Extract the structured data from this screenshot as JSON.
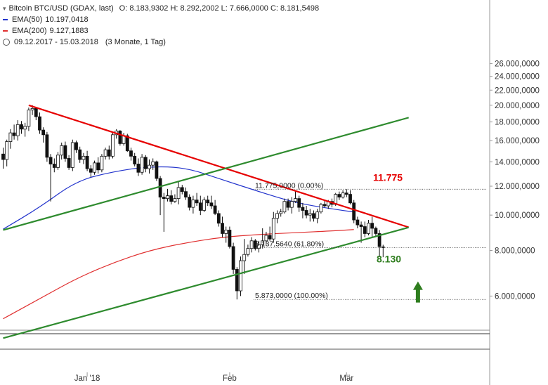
{
  "legend": {
    "instrument": "Bitcoin BTC/USD (GDAX, last)",
    "ohlc": "O: 8.183,9302  H: 8.292,2002  L: 7.666,0000  C: 8.181,5498",
    "ema50_label": "EMA(50)",
    "ema50_value": "10.197,0418",
    "ema200_label": "EMA(200)",
    "ema200_value": "9.127,1883",
    "range": "09.12.2017 - 15.03.2018",
    "period": "(3 Monate, 1 Tag)"
  },
  "colors": {
    "ema50": "#2233cc",
    "ema200": "#e03030",
    "candle_up": "#ffffff",
    "candle_down": "#111111",
    "downtrend": "#e60000",
    "channel": "#2e8b2e",
    "annotation_red": "#e60000",
    "annotation_green": "#2e7d1e"
  },
  "chart_data": {
    "type": "candlestick",
    "y_ticks": [
      "26.000,0000",
      "24.000,0000",
      "22.000,0000",
      "20.000,0000",
      "18.000,0000",
      "16.000,0000",
      "14.000,0000",
      "12.000,0000",
      "10.000,0000",
      "8.000,0000",
      "6.000,0000"
    ],
    "x_ticks": [
      "Jan '18",
      "Feb",
      "Mär"
    ],
    "fib_levels": [
      {
        "label": "11.775,0000 (0.00%)"
      },
      {
        "label": "8.137,5640 (61.80%)"
      },
      {
        "label": "5.873,0000 (100.00%)"
      }
    ],
    "annotations": {
      "resistance": "11.775",
      "support": "8.130"
    },
    "candles": [
      {
        "o": 14700,
        "h": 15300,
        "l": 13400,
        "c": 14200
      },
      {
        "o": 14200,
        "h": 16100,
        "l": 13600,
        "c": 15900
      },
      {
        "o": 15900,
        "h": 17200,
        "l": 15200,
        "c": 16800
      },
      {
        "o": 16800,
        "h": 17700,
        "l": 16100,
        "c": 16500
      },
      {
        "o": 16500,
        "h": 18200,
        "l": 16000,
        "c": 17700
      },
      {
        "o": 17700,
        "h": 18100,
        "l": 16700,
        "c": 17200
      },
      {
        "o": 17200,
        "h": 17900,
        "l": 16400,
        "c": 17500
      },
      {
        "o": 17500,
        "h": 19700,
        "l": 17000,
        "c": 19400
      },
      {
        "o": 19400,
        "h": 20000,
        "l": 18800,
        "c": 19600
      },
      {
        "o": 19600,
        "h": 19800,
        "l": 18200,
        "c": 18600
      },
      {
        "o": 18600,
        "h": 19100,
        "l": 16700,
        "c": 17100
      },
      {
        "o": 17100,
        "h": 17400,
        "l": 15800,
        "c": 16600
      },
      {
        "o": 16600,
        "h": 16900,
        "l": 14000,
        "c": 14400
      },
      {
        "o": 14400,
        "h": 14700,
        "l": 10900,
        "c": 13800
      },
      {
        "o": 13800,
        "h": 14300,
        "l": 13100,
        "c": 13500
      },
      {
        "o": 13500,
        "h": 14900,
        "l": 13300,
        "c": 14600
      },
      {
        "o": 14600,
        "h": 15800,
        "l": 14200,
        "c": 15500
      },
      {
        "o": 15500,
        "h": 15900,
        "l": 14000,
        "c": 14300
      },
      {
        "o": 14300,
        "h": 14600,
        "l": 13300,
        "c": 13500
      },
      {
        "o": 13500,
        "h": 16100,
        "l": 13200,
        "c": 15800
      },
      {
        "o": 15800,
        "h": 16000,
        "l": 14800,
        "c": 15100
      },
      {
        "o": 15100,
        "h": 15400,
        "l": 13900,
        "c": 14200
      },
      {
        "o": 14200,
        "h": 14800,
        "l": 13800,
        "c": 14500
      },
      {
        "o": 14500,
        "h": 15000,
        "l": 13200,
        "c": 13400
      },
      {
        "o": 13400,
        "h": 13700,
        "l": 12700,
        "c": 13100
      },
      {
        "o": 13100,
        "h": 14100,
        "l": 12900,
        "c": 13900
      },
      {
        "o": 13900,
        "h": 14400,
        "l": 13000,
        "c": 13300
      },
      {
        "o": 13300,
        "h": 14700,
        "l": 13100,
        "c": 14500
      },
      {
        "o": 14500,
        "h": 15300,
        "l": 14200,
        "c": 15100
      },
      {
        "o": 15100,
        "h": 15500,
        "l": 14200,
        "c": 14500
      },
      {
        "o": 14500,
        "h": 16900,
        "l": 14300,
        "c": 16600
      },
      {
        "o": 16600,
        "h": 17200,
        "l": 16200,
        "c": 17000
      },
      {
        "o": 17000,
        "h": 17100,
        "l": 15500,
        "c": 15700
      },
      {
        "o": 15700,
        "h": 16800,
        "l": 15500,
        "c": 16500
      },
      {
        "o": 16500,
        "h": 16700,
        "l": 14900,
        "c": 15000
      },
      {
        "o": 15000,
        "h": 15300,
        "l": 14100,
        "c": 14500
      },
      {
        "o": 14500,
        "h": 14800,
        "l": 13600,
        "c": 13800
      },
      {
        "o": 13800,
        "h": 14300,
        "l": 12800,
        "c": 13100
      },
      {
        "o": 13100,
        "h": 14700,
        "l": 12900,
        "c": 14400
      },
      {
        "o": 14400,
        "h": 14600,
        "l": 13100,
        "c": 13400
      },
      {
        "o": 13400,
        "h": 14200,
        "l": 13000,
        "c": 13700
      },
      {
        "o": 13700,
        "h": 14300,
        "l": 13300,
        "c": 14000
      },
      {
        "o": 14000,
        "h": 14100,
        "l": 12400,
        "c": 12600
      },
      {
        "o": 12600,
        "h": 12800,
        "l": 10000,
        "c": 11200
      },
      {
        "o": 11200,
        "h": 11500,
        "l": 9000,
        "c": 11100
      },
      {
        "o": 11100,
        "h": 11800,
        "l": 10900,
        "c": 11300
      },
      {
        "o": 11300,
        "h": 11700,
        "l": 10700,
        "c": 10900
      },
      {
        "o": 10900,
        "h": 11400,
        "l": 10800,
        "c": 11100
      },
      {
        "o": 11100,
        "h": 12400,
        "l": 10700,
        "c": 11900
      },
      {
        "o": 11900,
        "h": 12100,
        "l": 11400,
        "c": 11600
      },
      {
        "o": 11600,
        "h": 11900,
        "l": 11000,
        "c": 11200
      },
      {
        "o": 11200,
        "h": 11400,
        "l": 10300,
        "c": 10500
      },
      {
        "o": 10500,
        "h": 11300,
        "l": 10100,
        "c": 11000
      },
      {
        "o": 11000,
        "h": 11500,
        "l": 10600,
        "c": 10800
      },
      {
        "o": 10800,
        "h": 11300,
        "l": 10000,
        "c": 10300
      },
      {
        "o": 10300,
        "h": 11200,
        "l": 10200,
        "c": 11000
      },
      {
        "o": 11000,
        "h": 11300,
        "l": 10600,
        "c": 10800
      },
      {
        "o": 10800,
        "h": 11300,
        "l": 10400,
        "c": 10600
      },
      {
        "o": 10600,
        "h": 11000,
        "l": 10000,
        "c": 10100
      },
      {
        "o": 10100,
        "h": 10300,
        "l": 9300,
        "c": 9500
      },
      {
        "o": 9500,
        "h": 9900,
        "l": 8700,
        "c": 8900
      },
      {
        "o": 8900,
        "h": 9300,
        "l": 8400,
        "c": 9100
      },
      {
        "o": 9100,
        "h": 9300,
        "l": 8100,
        "c": 8200
      },
      {
        "o": 8200,
        "h": 8400,
        "l": 6900,
        "c": 7100
      },
      {
        "o": 7100,
        "h": 7200,
        "l": 5873,
        "c": 6200
      },
      {
        "o": 6200,
        "h": 7700,
        "l": 6000,
        "c": 7500
      },
      {
        "o": 7500,
        "h": 8600,
        "l": 6900,
        "c": 7800
      },
      {
        "o": 7800,
        "h": 8300,
        "l": 7700,
        "c": 8100
      },
      {
        "o": 8100,
        "h": 8700,
        "l": 7900,
        "c": 8500
      },
      {
        "o": 8500,
        "h": 8600,
        "l": 8000,
        "c": 8100
      },
      {
        "o": 8100,
        "h": 8500,
        "l": 7900,
        "c": 8300
      },
      {
        "o": 8300,
        "h": 9200,
        "l": 8100,
        "c": 8500
      },
      {
        "o": 8500,
        "h": 9000,
        "l": 8300,
        "c": 8800
      },
      {
        "o": 8800,
        "h": 9300,
        "l": 8500,
        "c": 8600
      },
      {
        "o": 8600,
        "h": 10200,
        "l": 8400,
        "c": 9800
      },
      {
        "o": 9800,
        "h": 10300,
        "l": 9500,
        "c": 10100
      },
      {
        "o": 10100,
        "h": 10400,
        "l": 9900,
        "c": 10200
      },
      {
        "o": 10200,
        "h": 11100,
        "l": 10100,
        "c": 10900
      },
      {
        "o": 10900,
        "h": 11100,
        "l": 10300,
        "c": 10500
      },
      {
        "o": 10500,
        "h": 11200,
        "l": 10100,
        "c": 10900
      },
      {
        "o": 10900,
        "h": 11700,
        "l": 10800,
        "c": 11100
      },
      {
        "o": 11100,
        "h": 11300,
        "l": 10200,
        "c": 10500
      },
      {
        "o": 10500,
        "h": 10800,
        "l": 9800,
        "c": 10300
      },
      {
        "o": 10300,
        "h": 10600,
        "l": 9800,
        "c": 10000
      },
      {
        "o": 10000,
        "h": 10400,
        "l": 9600,
        "c": 10100
      },
      {
        "o": 10100,
        "h": 10300,
        "l": 9600,
        "c": 9800
      },
      {
        "o": 9800,
        "h": 10400,
        "l": 9500,
        "c": 10200
      },
      {
        "o": 10200,
        "h": 10800,
        "l": 10100,
        "c": 10700
      },
      {
        "o": 10700,
        "h": 11000,
        "l": 10500,
        "c": 10600
      },
      {
        "o": 10600,
        "h": 11000,
        "l": 10400,
        "c": 10900
      },
      {
        "o": 10900,
        "h": 11100,
        "l": 10500,
        "c": 10700
      },
      {
        "o": 10700,
        "h": 11500,
        "l": 10600,
        "c": 11400
      },
      {
        "o": 11400,
        "h": 11600,
        "l": 11000,
        "c": 11200
      },
      {
        "o": 11200,
        "h": 11700,
        "l": 11100,
        "c": 11500
      },
      {
        "o": 11500,
        "h": 11775,
        "l": 11200,
        "c": 11400
      },
      {
        "o": 11400,
        "h": 11700,
        "l": 10700,
        "c": 10800
      },
      {
        "o": 10800,
        "h": 11000,
        "l": 9500,
        "c": 9700
      },
      {
        "o": 9700,
        "h": 9900,
        "l": 9200,
        "c": 9400
      },
      {
        "o": 9400,
        "h": 9600,
        "l": 8400,
        "c": 9300
      },
      {
        "o": 9300,
        "h": 9600,
        "l": 8700,
        "c": 8900
      },
      {
        "o": 8900,
        "h": 9700,
        "l": 8800,
        "c": 9500
      },
      {
        "o": 9500,
        "h": 9900,
        "l": 8700,
        "c": 9200
      },
      {
        "o": 9200,
        "h": 9300,
        "l": 8700,
        "c": 8900
      },
      {
        "o": 8900,
        "h": 9100,
        "l": 7666,
        "c": 8200
      },
      {
        "o": 8184,
        "h": 8292,
        "l": 7666,
        "c": 8182
      }
    ],
    "ema50": [
      [
        0,
        9150
      ],
      [
        10,
        10500
      ],
      [
        20,
        12400
      ],
      [
        30,
        13150
      ],
      [
        40,
        13600
      ],
      [
        50,
        13500
      ],
      [
        60,
        12500
      ],
      [
        70,
        11600
      ],
      [
        80,
        10800
      ],
      [
        90,
        10400
      ],
      [
        96,
        10197
      ]
    ],
    "ema200": [
      [
        0,
        5200
      ],
      [
        10,
        5900
      ],
      [
        20,
        6700
      ],
      [
        30,
        7400
      ],
      [
        40,
        8000
      ],
      [
        50,
        8400
      ],
      [
        60,
        8700
      ],
      [
        70,
        8850
      ],
      [
        80,
        8950
      ],
      [
        90,
        9050
      ],
      [
        96,
        9127
      ]
    ],
    "trendlines": [
      {
        "name": "downtrend",
        "from": [
          7,
          20000
        ],
        "to": [
          111,
          9260
        ]
      },
      {
        "name": "channel-upper",
        "from": [
          0,
          9100
        ],
        "to": [
          111,
          18500
        ]
      },
      {
        "name": "channel-lower",
        "from": [
          0,
          4600
        ],
        "to": [
          111,
          9250
        ]
      }
    ]
  }
}
